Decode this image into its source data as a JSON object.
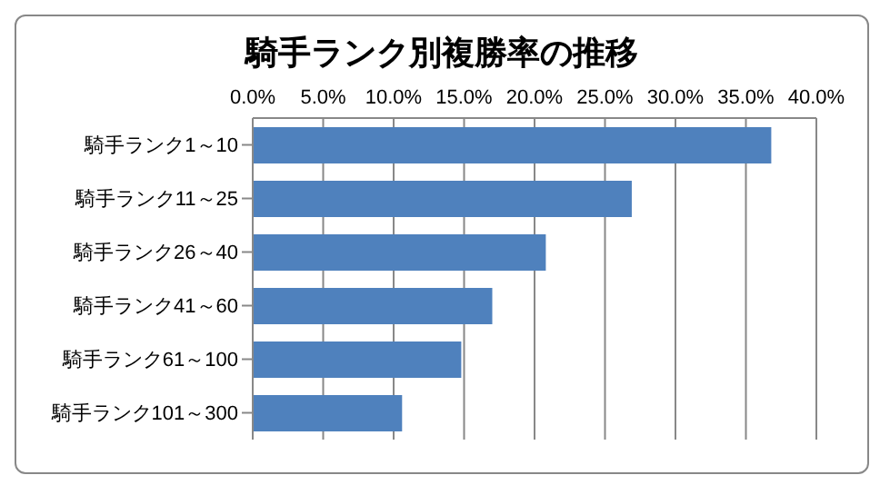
{
  "chart_data": {
    "type": "bar",
    "orientation": "horizontal",
    "title": "騎手ランク別複勝率の推移",
    "categories": [
      "騎手ランク1～10",
      "騎手ランク11～25",
      "騎手ランク26～40",
      "騎手ランク41～60",
      "騎手ランク61～100",
      "騎手ランク101～300"
    ],
    "values": [
      36.8,
      26.9,
      20.8,
      17.0,
      14.8,
      10.6
    ],
    "color": "#4f81bd",
    "xlim": [
      0,
      40
    ],
    "xticks": [
      {
        "value": 0,
        "label": "0.0%"
      },
      {
        "value": 5,
        "label": "5.0%"
      },
      {
        "value": 10,
        "label": "10.0%"
      },
      {
        "value": 15,
        "label": "15.0%"
      },
      {
        "value": 20,
        "label": "20.0%"
      },
      {
        "value": 25,
        "label": "25.0%"
      },
      {
        "value": 30,
        "label": "30.0%"
      },
      {
        "value": 35,
        "label": "35.0%"
      },
      {
        "value": 40,
        "label": "40.0%"
      }
    ],
    "grid": "x"
  }
}
